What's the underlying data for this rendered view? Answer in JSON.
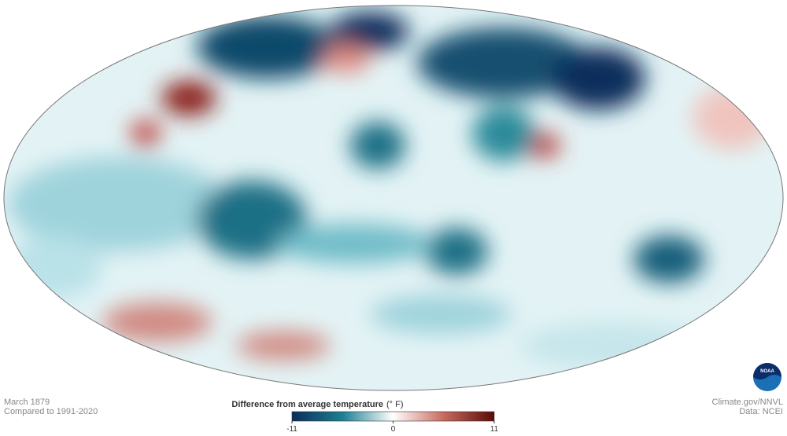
{
  "map": {
    "period": "March 1879",
    "baseline": "Compared to 1991-2020",
    "credit": "Climate.gov/NNVL",
    "source": "Data: NCEI",
    "logo": "NOAA"
  },
  "legend": {
    "title": "Difference from average temperature",
    "unit": "(° F)",
    "min": -11,
    "max": 11,
    "ticks": [
      -11,
      0,
      11
    ],
    "colors": [
      "#0b2d5c",
      "#1d7f92",
      "#ffffff",
      "#c86a5f",
      "#5a0a08"
    ]
  }
}
